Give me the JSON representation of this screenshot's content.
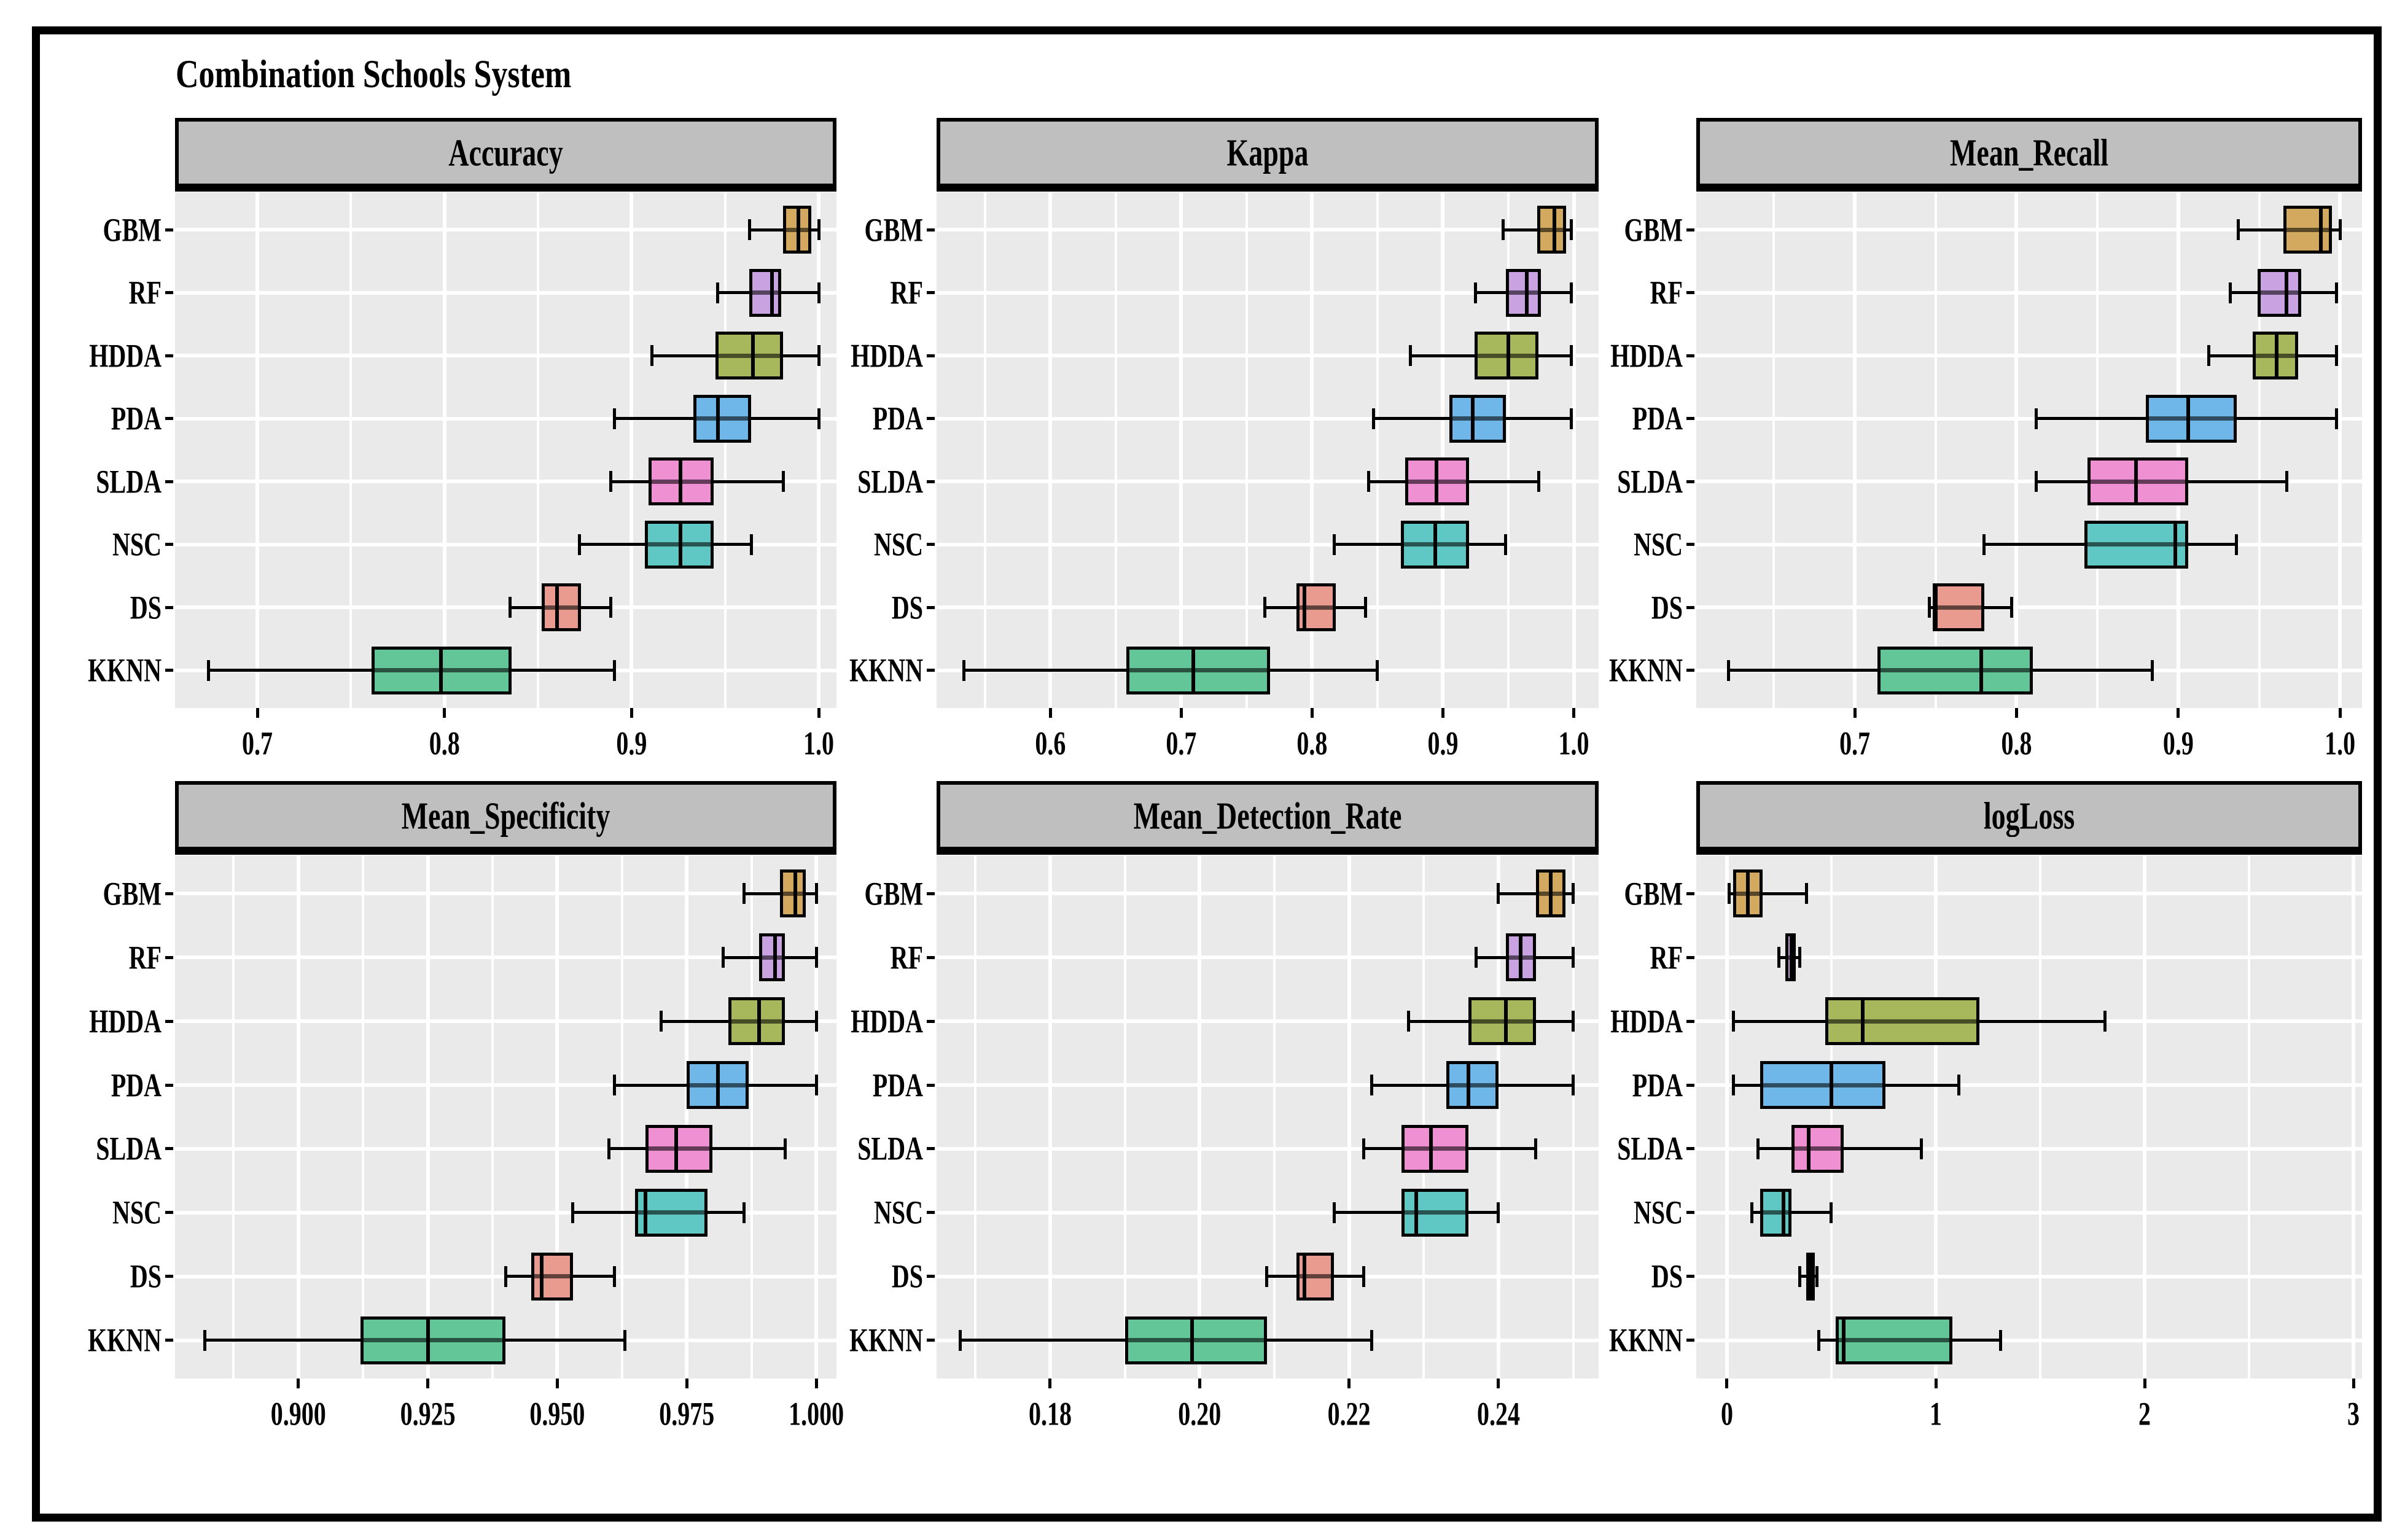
{
  "title": "Combination Schools System",
  "models": [
    "GBM",
    "RF",
    "HDDA",
    "PDA",
    "SLDA",
    "NSC",
    "DS",
    "KKNN"
  ],
  "colors": {
    "ink": "#000000",
    "strip_bg": "#BFBFBF",
    "panel_bg": "#EAEAEA",
    "grid": "#FFFFFF",
    "fills": {
      "GBM": "#D2A95F",
      "RF": "#C9A2E2",
      "HDDA": "#A7B85C",
      "PDA": "#6FB7E8",
      "SLDA": "#EF90D3",
      "NSC": "#5FC7C4",
      "DS": "#E89B8E",
      "KKNN": "#62C698"
    }
  },
  "chart_data": [
    {
      "type": "boxplot",
      "title": "Accuracy",
      "orientation": "horizontal",
      "grid": "on",
      "categories": [
        "GBM",
        "RF",
        "HDDA",
        "PDA",
        "SLDA",
        "NSC",
        "DS",
        "KKNN"
      ],
      "xlim": [
        0.656,
        1.0095
      ],
      "xticks": [
        0.7,
        0.8,
        0.9,
        1.0
      ],
      "xtick_labels": [
        "0.7",
        "0.8",
        "0.9",
        "1.0"
      ],
      "xticks_minor": [
        0.65,
        0.75,
        0.85,
        0.95
      ],
      "series": [
        {
          "name": "GBM",
          "low": 0.963,
          "q1": 0.981,
          "median": 0.989,
          "q3": 0.996,
          "high": 1.0
        },
        {
          "name": "RF",
          "low": 0.946,
          "q1": 0.963,
          "median": 0.975,
          "q3": 0.98,
          "high": 1.0
        },
        {
          "name": "HDDA",
          "low": 0.911,
          "q1": 0.945,
          "median": 0.965,
          "q3": 0.981,
          "high": 1.0
        },
        {
          "name": "PDA",
          "low": 0.891,
          "q1": 0.933,
          "median": 0.946,
          "q3": 0.964,
          "high": 1.0
        },
        {
          "name": "SLDA",
          "low": 0.889,
          "q1": 0.909,
          "median": 0.926,
          "q3": 0.944,
          "high": 0.981
        },
        {
          "name": "NSC",
          "low": 0.872,
          "q1": 0.907,
          "median": 0.926,
          "q3": 0.944,
          "high": 0.964
        },
        {
          "name": "DS",
          "low": 0.835,
          "q1": 0.852,
          "median": 0.86,
          "q3": 0.873,
          "high": 0.889
        },
        {
          "name": "KKNN",
          "low": 0.674,
          "q1": 0.761,
          "median": 0.798,
          "q3": 0.836,
          "high": 0.891
        }
      ]
    },
    {
      "type": "boxplot",
      "title": "Kappa",
      "orientation": "horizontal",
      "grid": "on",
      "categories": [
        "GBM",
        "RF",
        "HDDA",
        "PDA",
        "SLDA",
        "NSC",
        "DS",
        "KKNN"
      ],
      "xlim": [
        0.513,
        1.019
      ],
      "xticks": [
        0.6,
        0.7,
        0.8,
        0.9,
        1.0
      ],
      "xtick_labels": [
        "0.6",
        "0.7",
        "0.8",
        "0.9",
        "1.0"
      ],
      "xticks_minor": [
        0.55,
        0.65,
        0.75,
        0.85,
        0.95
      ],
      "series": [
        {
          "name": "GBM",
          "low": 0.946,
          "q1": 0.972,
          "median": 0.985,
          "q3": 0.994,
          "high": 0.998
        },
        {
          "name": "RF",
          "low": 0.925,
          "q1": 0.948,
          "median": 0.964,
          "q3": 0.975,
          "high": 0.998
        },
        {
          "name": "HDDA",
          "low": 0.875,
          "q1": 0.924,
          "median": 0.95,
          "q3": 0.973,
          "high": 0.998
        },
        {
          "name": "PDA",
          "low": 0.847,
          "q1": 0.905,
          "median": 0.923,
          "q3": 0.948,
          "high": 0.998
        },
        {
          "name": "SLDA",
          "low": 0.843,
          "q1": 0.871,
          "median": 0.895,
          "q3": 0.92,
          "high": 0.973
        },
        {
          "name": "NSC",
          "low": 0.817,
          "q1": 0.868,
          "median": 0.894,
          "q3": 0.92,
          "high": 0.948
        },
        {
          "name": "DS",
          "low": 0.764,
          "q1": 0.788,
          "median": 0.794,
          "q3": 0.818,
          "high": 0.841
        },
        {
          "name": "KKNN",
          "low": 0.534,
          "q1": 0.658,
          "median": 0.709,
          "q3": 0.768,
          "high": 0.85
        }
      ]
    },
    {
      "type": "boxplot",
      "title": "Mean_Recall",
      "orientation": "horizontal",
      "grid": "on",
      "categories": [
        "GBM",
        "RF",
        "HDDA",
        "PDA",
        "SLDA",
        "NSC",
        "DS",
        "KKNN"
      ],
      "xlim": [
        0.602,
        1.0136
      ],
      "xticks": [
        0.7,
        0.8,
        0.9,
        1.0
      ],
      "xtick_labels": [
        "0.7",
        "0.8",
        "0.9",
        "1.0"
      ],
      "xticks_minor": [
        0.65,
        0.75,
        0.85,
        0.95
      ],
      "series": [
        {
          "name": "GBM",
          "low": 0.937,
          "q1": 0.965,
          "median": 0.988,
          "q3": 0.995,
          "high": 1.0
        },
        {
          "name": "RF",
          "low": 0.932,
          "q1": 0.949,
          "median": 0.967,
          "q3": 0.976,
          "high": 0.998
        },
        {
          "name": "HDDA",
          "low": 0.919,
          "q1": 0.946,
          "median": 0.961,
          "q3": 0.974,
          "high": 0.998
        },
        {
          "name": "PDA",
          "low": 0.812,
          "q1": 0.88,
          "median": 0.906,
          "q3": 0.936,
          "high": 0.998
        },
        {
          "name": "SLDA",
          "low": 0.812,
          "q1": 0.844,
          "median": 0.874,
          "q3": 0.906,
          "high": 0.967
        },
        {
          "name": "NSC",
          "low": 0.78,
          "q1": 0.842,
          "median": 0.898,
          "q3": 0.906,
          "high": 0.936
        },
        {
          "name": "DS",
          "low": 0.746,
          "q1": 0.748,
          "median": 0.75,
          "q3": 0.78,
          "high": 0.797
        },
        {
          "name": "KKNN",
          "low": 0.622,
          "q1": 0.714,
          "median": 0.778,
          "q3": 0.81,
          "high": 0.884
        }
      ]
    },
    {
      "type": "boxplot",
      "title": "Mean_Specificity",
      "orientation": "horizontal",
      "grid": "on",
      "categories": [
        "GBM",
        "RF",
        "HDDA",
        "PDA",
        "SLDA",
        "NSC",
        "DS",
        "KKNN"
      ],
      "xlim": [
        0.8762,
        1.0039
      ],
      "xticks": [
        0.9,
        0.925,
        0.95,
        0.975,
        1.0
      ],
      "xtick_labels": [
        "0.900",
        "0.925",
        "0.950",
        "0.975",
        "1.000"
      ],
      "xticks_minor": [
        0.8875,
        0.9125,
        0.9375,
        0.9625,
        0.9875
      ],
      "series": [
        {
          "name": "GBM",
          "low": 0.986,
          "q1": 0.993,
          "median": 0.996,
          "q3": 0.998,
          "high": 1.0
        },
        {
          "name": "RF",
          "low": 0.982,
          "q1": 0.989,
          "median": 0.992,
          "q3": 0.994,
          "high": 1.0
        },
        {
          "name": "HDDA",
          "low": 0.97,
          "q1": 0.983,
          "median": 0.989,
          "q3": 0.994,
          "high": 1.0
        },
        {
          "name": "PDA",
          "low": 0.961,
          "q1": 0.975,
          "median": 0.981,
          "q3": 0.987,
          "high": 1.0
        },
        {
          "name": "SLDA",
          "low": 0.96,
          "q1": 0.967,
          "median": 0.973,
          "q3": 0.98,
          "high": 0.994
        },
        {
          "name": "NSC",
          "low": 0.953,
          "q1": 0.965,
          "median": 0.967,
          "q3": 0.979,
          "high": 0.986
        },
        {
          "name": "DS",
          "low": 0.94,
          "q1": 0.945,
          "median": 0.947,
          "q3": 0.953,
          "high": 0.961
        },
        {
          "name": "KKNN",
          "low": 0.882,
          "q1": 0.912,
          "median": 0.925,
          "q3": 0.94,
          "high": 0.963
        }
      ]
    },
    {
      "type": "boxplot",
      "title": "Mean_Detection_Rate",
      "orientation": "horizontal",
      "grid": "on",
      "categories": [
        "GBM",
        "RF",
        "HDDA",
        "PDA",
        "SLDA",
        "NSC",
        "DS",
        "KKNN"
      ],
      "xlim": [
        0.1648,
        0.2534
      ],
      "xticks": [
        0.18,
        0.2,
        0.22,
        0.24
      ],
      "xtick_labels": [
        "0.18",
        "0.20",
        "0.22",
        "0.24"
      ],
      "xticks_minor": [
        0.17,
        0.19,
        0.21,
        0.23,
        0.25
      ],
      "series": [
        {
          "name": "GBM",
          "low": 0.24,
          "q1": 0.245,
          "median": 0.247,
          "q3": 0.249,
          "high": 0.25
        },
        {
          "name": "RF",
          "low": 0.237,
          "q1": 0.241,
          "median": 0.243,
          "q3": 0.245,
          "high": 0.25
        },
        {
          "name": "HDDA",
          "low": 0.228,
          "q1": 0.236,
          "median": 0.241,
          "q3": 0.245,
          "high": 0.25
        },
        {
          "name": "PDA",
          "low": 0.223,
          "q1": 0.233,
          "median": 0.236,
          "q3": 0.24,
          "high": 0.25
        },
        {
          "name": "SLDA",
          "low": 0.222,
          "q1": 0.227,
          "median": 0.231,
          "q3": 0.236,
          "high": 0.245
        },
        {
          "name": "NSC",
          "low": 0.218,
          "q1": 0.227,
          "median": 0.229,
          "q3": 0.236,
          "high": 0.24
        },
        {
          "name": "DS",
          "low": 0.209,
          "q1": 0.213,
          "median": 0.214,
          "q3": 0.218,
          "high": 0.222
        },
        {
          "name": "KKNN",
          "low": 0.168,
          "q1": 0.19,
          "median": 0.199,
          "q3": 0.209,
          "high": 0.223
        }
      ]
    },
    {
      "type": "boxplot",
      "title": "logLoss",
      "orientation": "horizontal",
      "grid": "on",
      "categories": [
        "GBM",
        "RF",
        "HDDA",
        "PDA",
        "SLDA",
        "NSC",
        "DS",
        "KKNN"
      ],
      "xlim": [
        -0.147,
        3.041
      ],
      "xticks": [
        0,
        1,
        2,
        3
      ],
      "xtick_labels": [
        "0",
        "1",
        "2",
        "3"
      ],
      "xticks_minor": [
        0.5,
        1.5,
        2.5
      ],
      "series": [
        {
          "name": "GBM",
          "low": 0.01,
          "q1": 0.03,
          "median": 0.1,
          "q3": 0.17,
          "high": 0.38
        },
        {
          "name": "RF",
          "low": 0.25,
          "q1": 0.28,
          "median": 0.31,
          "q3": 0.33,
          "high": 0.35
        },
        {
          "name": "HDDA",
          "low": 0.03,
          "q1": 0.47,
          "median": 0.65,
          "q3": 1.21,
          "high": 1.81
        },
        {
          "name": "PDA",
          "low": 0.03,
          "q1": 0.16,
          "median": 0.5,
          "q3": 0.76,
          "high": 1.11
        },
        {
          "name": "SLDA",
          "low": 0.15,
          "q1": 0.31,
          "median": 0.39,
          "q3": 0.56,
          "high": 0.93
        },
        {
          "name": "NSC",
          "low": 0.12,
          "q1": 0.16,
          "median": 0.27,
          "q3": 0.31,
          "high": 0.5
        },
        {
          "name": "DS",
          "low": 0.35,
          "q1": 0.38,
          "median": 0.4,
          "q3": 0.42,
          "high": 0.43
        },
        {
          "name": "KKNN",
          "low": 0.44,
          "q1": 0.52,
          "median": 0.56,
          "q3": 1.08,
          "high": 1.31
        }
      ]
    }
  ]
}
